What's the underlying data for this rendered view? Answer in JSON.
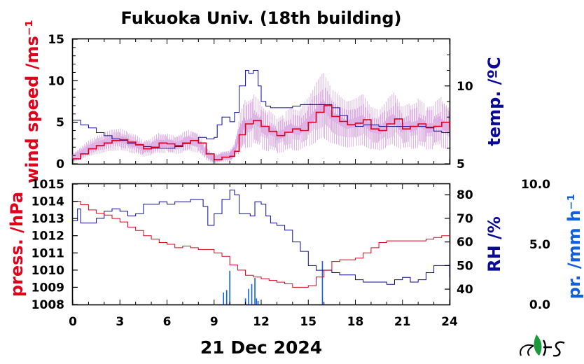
{
  "chart_data": [
    {
      "type": "line",
      "title": "Fukuoka Univ. (18th building)",
      "xlabel": "21 Dec 2024",
      "x_ticks": [
        "0",
        "3",
        "6",
        "9",
        "12",
        "15",
        "18",
        "21",
        "24"
      ],
      "xlim": [
        0,
        24
      ],
      "left_axis": {
        "label": "wind speed /ms⁻¹",
        "label_sup": "−1",
        "ylim": [
          0,
          15
        ],
        "ticks": [
          "0",
          "5",
          "10",
          "15"
        ],
        "color": "#e0001a"
      },
      "right_axis": {
        "label": "temp. /ºC",
        "ylim": [
          5,
          13
        ],
        "ticks": [
          "5",
          "10"
        ],
        "color": "#0a0a96"
      },
      "series": [
        {
          "axis": "right",
          "color": "#0a0a96",
          "x": [
            0,
            0.5,
            1,
            1.5,
            2,
            2.5,
            3,
            3.5,
            4,
            4.5,
            5,
            5.5,
            6,
            6.5,
            7,
            7.5,
            8,
            8.5,
            9,
            9.2,
            9.5,
            10,
            10.3,
            10.6,
            11,
            11.2,
            11.5,
            11.8,
            12,
            12.3,
            12.6,
            13,
            13.5,
            14,
            14.5,
            15,
            15.5,
            16,
            16.5,
            17,
            17.5,
            18,
            18.5,
            19,
            19.5,
            20,
            20.5,
            21,
            21.5,
            22,
            22.5,
            23,
            23.5,
            24
          ],
          "y": [
            7.8,
            7.5,
            7.3,
            7.0,
            6.8,
            6.6,
            6.5,
            6.3,
            6.2,
            6.1,
            6.0,
            6.0,
            6.0,
            6.1,
            6.3,
            6.5,
            6.7,
            6.6,
            6.7,
            7.5,
            8.0,
            7.7,
            8.3,
            10.0,
            11.0,
            10.8,
            11.0,
            10.0,
            9.0,
            8.7,
            8.6,
            8.6,
            8.6,
            8.7,
            8.8,
            8.8,
            8.8,
            8.8,
            8.6,
            8.1,
            7.5,
            7.4,
            7.5,
            7.5,
            7.4,
            7.4,
            7.4,
            7.4,
            7.4,
            7.4,
            7.3,
            7.1,
            7.0,
            7.0
          ]
        },
        {
          "axis": "left",
          "color": "#e0001a",
          "x": [
            0,
            0.5,
            1,
            1.5,
            2,
            2.5,
            3,
            3.5,
            4,
            4.5,
            5,
            5.5,
            6,
            6.5,
            7,
            7.5,
            8,
            8.5,
            9,
            9.5,
            10,
            10.3,
            10.6,
            11,
            11.5,
            12,
            12.5,
            13,
            13.5,
            14,
            14.5,
            15,
            15.5,
            16,
            16.5,
            17,
            17.5,
            18,
            18.5,
            19,
            19.5,
            20,
            20.5,
            21,
            21.5,
            22,
            22.5,
            23,
            23.5,
            24
          ],
          "y": [
            0.6,
            1.2,
            1.8,
            2.2,
            2.5,
            2.8,
            2.9,
            2.6,
            2.3,
            1.8,
            2.0,
            2.5,
            2.4,
            2.2,
            2.5,
            2.8,
            2.5,
            1.2,
            0.5,
            0.8,
            0.9,
            1.5,
            3.5,
            4.8,
            5.2,
            4.5,
            3.9,
            3.4,
            3.8,
            4.2,
            4.0,
            5.0,
            6.2,
            7.0,
            5.7,
            5.1,
            4.7,
            4.9,
            5.3,
            4.2,
            4.0,
            4.8,
            5.4,
            4.2,
            4.5,
            4.8,
            4.4,
            4.5,
            5.0,
            4.3
          ]
        }
      ]
    },
    {
      "type": "line",
      "xlabel": "21 Dec 2024",
      "x_ticks": [
        "0",
        "3",
        "6",
        "9",
        "12",
        "15",
        "18",
        "21",
        "24"
      ],
      "xlim": [
        0,
        24
      ],
      "left_axis": {
        "label": "press. /hPa",
        "ylim": [
          1008,
          1015
        ],
        "ticks": [
          "1008",
          "1009",
          "1010",
          "1011",
          "1012",
          "1013",
          "1014",
          "1015"
        ],
        "color": "#e0001a"
      },
      "right_axis": {
        "label": "RH /%",
        "ylim": [
          33.5,
          84.5
        ],
        "ticks": [
          "40",
          "50",
          "60",
          "70",
          "80"
        ],
        "color": "#0a0a96"
      },
      "precip_axis": {
        "label": "pr. /mm h⁻¹",
        "label_sup": "−1",
        "ylim": [
          0,
          10
        ],
        "ticks": [
          "0.0",
          "5.0",
          "10.0"
        ],
        "color": "#1060e0"
      },
      "series": [
        {
          "axis": "left",
          "color": "#e0001a",
          "x": [
            0,
            0.5,
            1,
            1.5,
            2,
            2.5,
            3,
            3.5,
            4,
            4.5,
            5,
            5.5,
            6,
            6.5,
            7,
            7.5,
            8,
            8.5,
            9,
            9.5,
            10,
            10.5,
            11,
            11.5,
            12,
            12.5,
            13,
            13.5,
            14,
            14.5,
            15,
            15.5,
            16,
            16.5,
            17,
            17.5,
            18,
            18.5,
            19,
            19.5,
            20,
            20.5,
            21,
            21.5,
            22,
            22.5,
            23,
            23.5,
            24
          ],
          "y": [
            1014.0,
            1013.8,
            1013.5,
            1013.3,
            1013.2,
            1013.0,
            1012.8,
            1012.5,
            1012.3,
            1012.0,
            1011.8,
            1011.6,
            1011.5,
            1011.3,
            1011.4,
            1011.3,
            1011.2,
            1011.2,
            1011.0,
            1010.8,
            1010.3,
            1010.0,
            1009.7,
            1009.6,
            1009.5,
            1009.4,
            1009.3,
            1009.2,
            1009.0,
            1009.0,
            1009.1,
            1009.6,
            1010.0,
            1010.5,
            1010.6,
            1010.6,
            1010.7,
            1011.0,
            1011.3,
            1011.6,
            1011.7,
            1011.7,
            1011.7,
            1011.7,
            1011.7,
            1011.8,
            1011.9,
            1012.0,
            1012.0
          ]
        },
        {
          "axis": "right",
          "color": "#0a0a96",
          "x": [
            0,
            0.3,
            0.5,
            1,
            1.5,
            2,
            2.5,
            3,
            3.5,
            4,
            4.5,
            5,
            5.5,
            6,
            6.5,
            7,
            7.5,
            8,
            8.3,
            8.6,
            9,
            9.5,
            10,
            10.3,
            10.6,
            11,
            11.3,
            11.6,
            12,
            12.3,
            12.6,
            13,
            13.5,
            14,
            14.5,
            15,
            15.5,
            16,
            16.5,
            17,
            17.5,
            18,
            18.5,
            19,
            19.5,
            20,
            20.5,
            21,
            21.5,
            22,
            22.5,
            23,
            23.5,
            24
          ],
          "y": [
            69,
            74,
            68,
            68,
            70,
            73,
            74,
            73,
            71,
            72,
            76,
            76,
            77,
            76,
            77,
            77,
            78,
            78,
            75,
            67,
            72,
            78,
            82,
            80,
            72,
            72,
            71,
            77,
            76,
            71,
            68,
            67,
            65,
            60,
            56,
            50,
            48,
            48,
            47,
            46,
            46,
            44,
            43,
            43,
            43,
            42,
            44,
            45,
            43,
            44,
            47,
            50,
            50,
            45
          ]
        },
        {
          "axis": "precip",
          "color": "#1060e0",
          "kind": "bar",
          "x": [
            9.6,
            9.8,
            10.0,
            11.0,
            11.2,
            11.4,
            11.6,
            11.7,
            11.8,
            15.9
          ],
          "y": [
            1.0,
            1.2,
            2.8,
            0.5,
            1.3,
            1.7,
            2.2,
            0.5,
            0.3,
            3.6
          ]
        }
      ]
    }
  ]
}
